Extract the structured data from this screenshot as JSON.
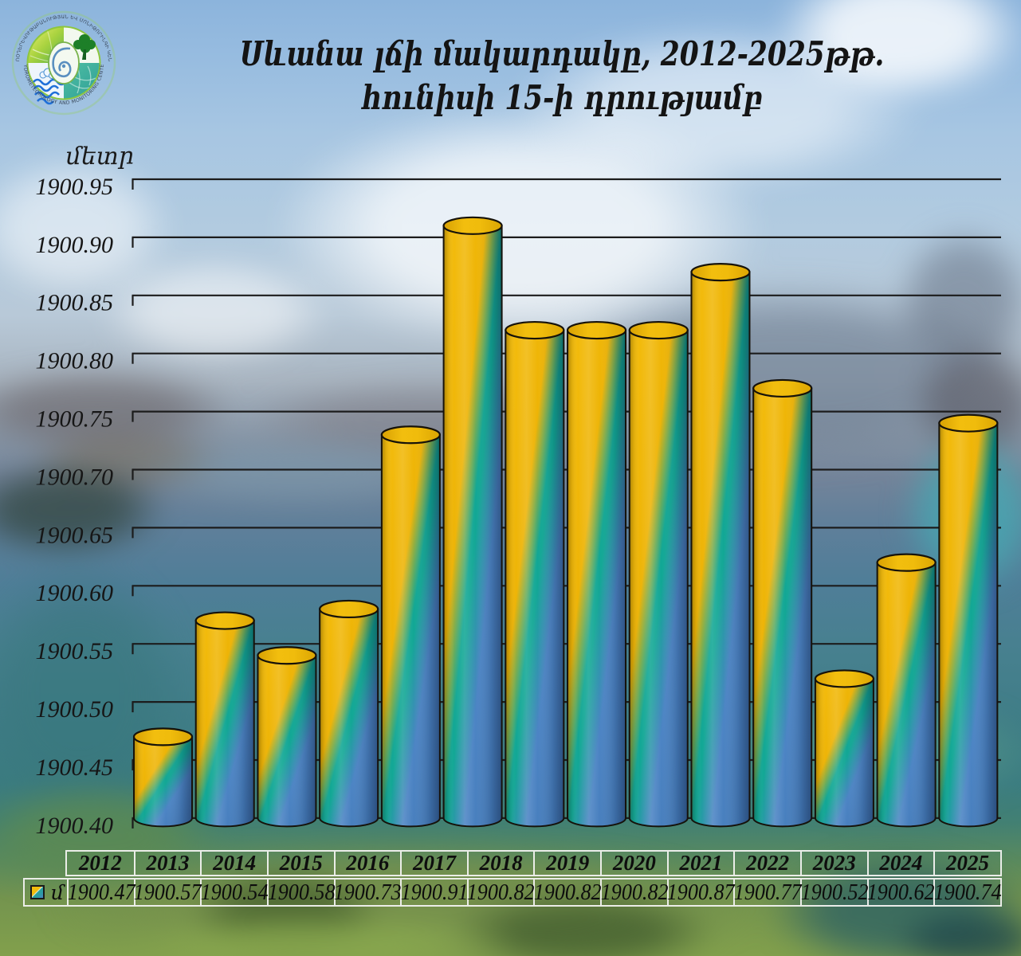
{
  "logo": {
    "text_top": "ՀԻԴՐՈՕԴԵՐԵՎՈՒԹԱԲԱՆՈՒԹՅԱՆ ԵՎ ՄՈՆԻԹՈՐԻՆԳԻ ԿԵՆՏՐՈՆ",
    "text_bottom": "«HYDROMETEOROLOGY AND MONITORING CENTER»"
  },
  "title": {
    "line1": "Սևանա լճի մակարդակը, 2012-2025թթ.",
    "line2": "հունիսի 15-ի դրությամբ"
  },
  "chart_data": {
    "type": "bar",
    "title": "Սևանա լճի մակարդակը, 2012-2025թթ. հունիսի 15-ի դրությամբ",
    "ylabel": "մետր",
    "categories": [
      "2012",
      "2013",
      "2014",
      "2015",
      "2016",
      "2017",
      "2018",
      "2019",
      "2020",
      "2021",
      "2022",
      "2023",
      "2024",
      "2025"
    ],
    "values": [
      1900.47,
      1900.57,
      1900.54,
      1900.58,
      1900.73,
      1900.91,
      1900.82,
      1900.82,
      1900.82,
      1900.87,
      1900.77,
      1900.52,
      1900.62,
      1900.74
    ],
    "ylim": [
      1900.4,
      1900.95
    ],
    "ytick_step": 0.05,
    "yticks": [
      "1900.95",
      "1900.90",
      "1900.85",
      "1900.80",
      "1900.75",
      "1900.70",
      "1900.65",
      "1900.60",
      "1900.55",
      "1900.50",
      "1900.45",
      "1900.40"
    ],
    "grid": true,
    "legend": [
      {
        "label": "մ"
      }
    ],
    "bar_colors": {
      "gold": "#EFB70A",
      "teal": "#16A695",
      "blue": "#4C84C4"
    }
  },
  "table": {
    "legend_label": "մ",
    "years": [
      "2012",
      "2013",
      "2014",
      "2015",
      "2016",
      "2017",
      "2018",
      "2019",
      "2020",
      "2021",
      "2022",
      "2023",
      "2024",
      "2025"
    ],
    "values": [
      "1900.47",
      "1900.57",
      "1900.54",
      "1900.58",
      "1900.73",
      "1900.91",
      "1900.82",
      "1900.82",
      "1900.82",
      "1900.87",
      "1900.77",
      "1900.52",
      "1900.62",
      "1900.74"
    ]
  }
}
